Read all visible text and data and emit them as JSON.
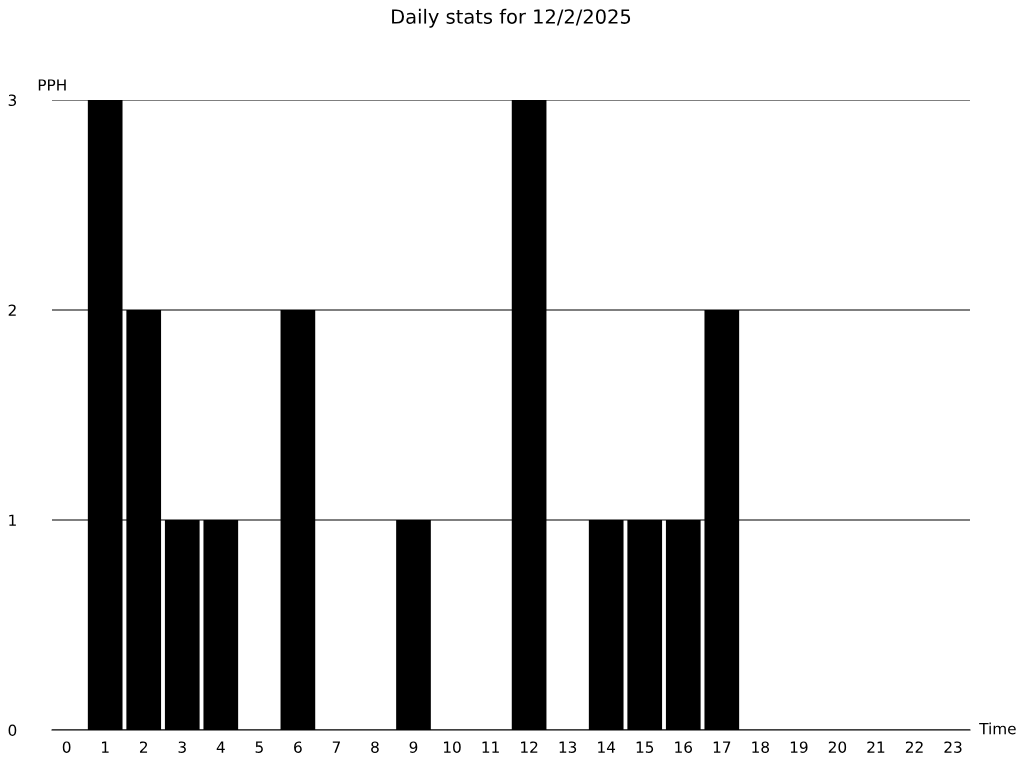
{
  "chart_data": {
    "type": "bar",
    "title": "Daily stats for 12/2/2025",
    "xlabel": "Time",
    "ylabel": "PPH",
    "categories": [
      "0",
      "1",
      "2",
      "3",
      "4",
      "5",
      "6",
      "7",
      "8",
      "9",
      "10",
      "11",
      "12",
      "13",
      "14",
      "15",
      "16",
      "17",
      "18",
      "19",
      "20",
      "21",
      "22",
      "23"
    ],
    "values": [
      0,
      3,
      2,
      1,
      1,
      0,
      2,
      0,
      0,
      1,
      0,
      0,
      3,
      0,
      1,
      1,
      1,
      2,
      0,
      0,
      0,
      0,
      0,
      0
    ],
    "color": "#000000",
    "ylim": [
      0,
      3
    ],
    "yticks": [
      0,
      1,
      2,
      3
    ],
    "grid": "y",
    "legend": false
  }
}
